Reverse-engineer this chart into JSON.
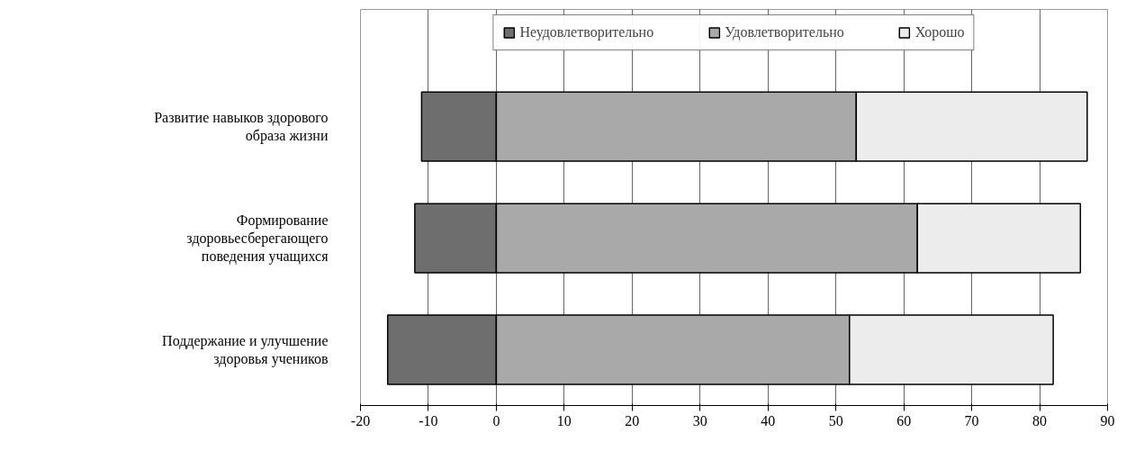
{
  "chart_data": {
    "type": "bar",
    "orientation": "horizontal",
    "stacked": true,
    "categories": [
      "Развитие навыков здорового образа жизни",
      "Формирование здоровьесберегающего поведения учащихся",
      "Поддержание и улучшение здоровья учеников"
    ],
    "series": [
      {
        "name": "Неудовлетворительно",
        "color": "#6e6e6e",
        "values": [
          -11,
          -12,
          -16
        ]
      },
      {
        "name": "Удовлетворительно",
        "color": "#a9a9a9",
        "values": [
          53,
          62,
          52
        ]
      },
      {
        "name": "Хорошо",
        "color": "#ececec",
        "values": [
          34,
          24,
          30
        ]
      }
    ],
    "xlim": [
      -20,
      90
    ],
    "xticks": [
      -20,
      -10,
      0,
      10,
      20,
      30,
      40,
      50,
      60,
      70,
      80,
      90
    ],
    "grid": "x",
    "legend": "top"
  }
}
